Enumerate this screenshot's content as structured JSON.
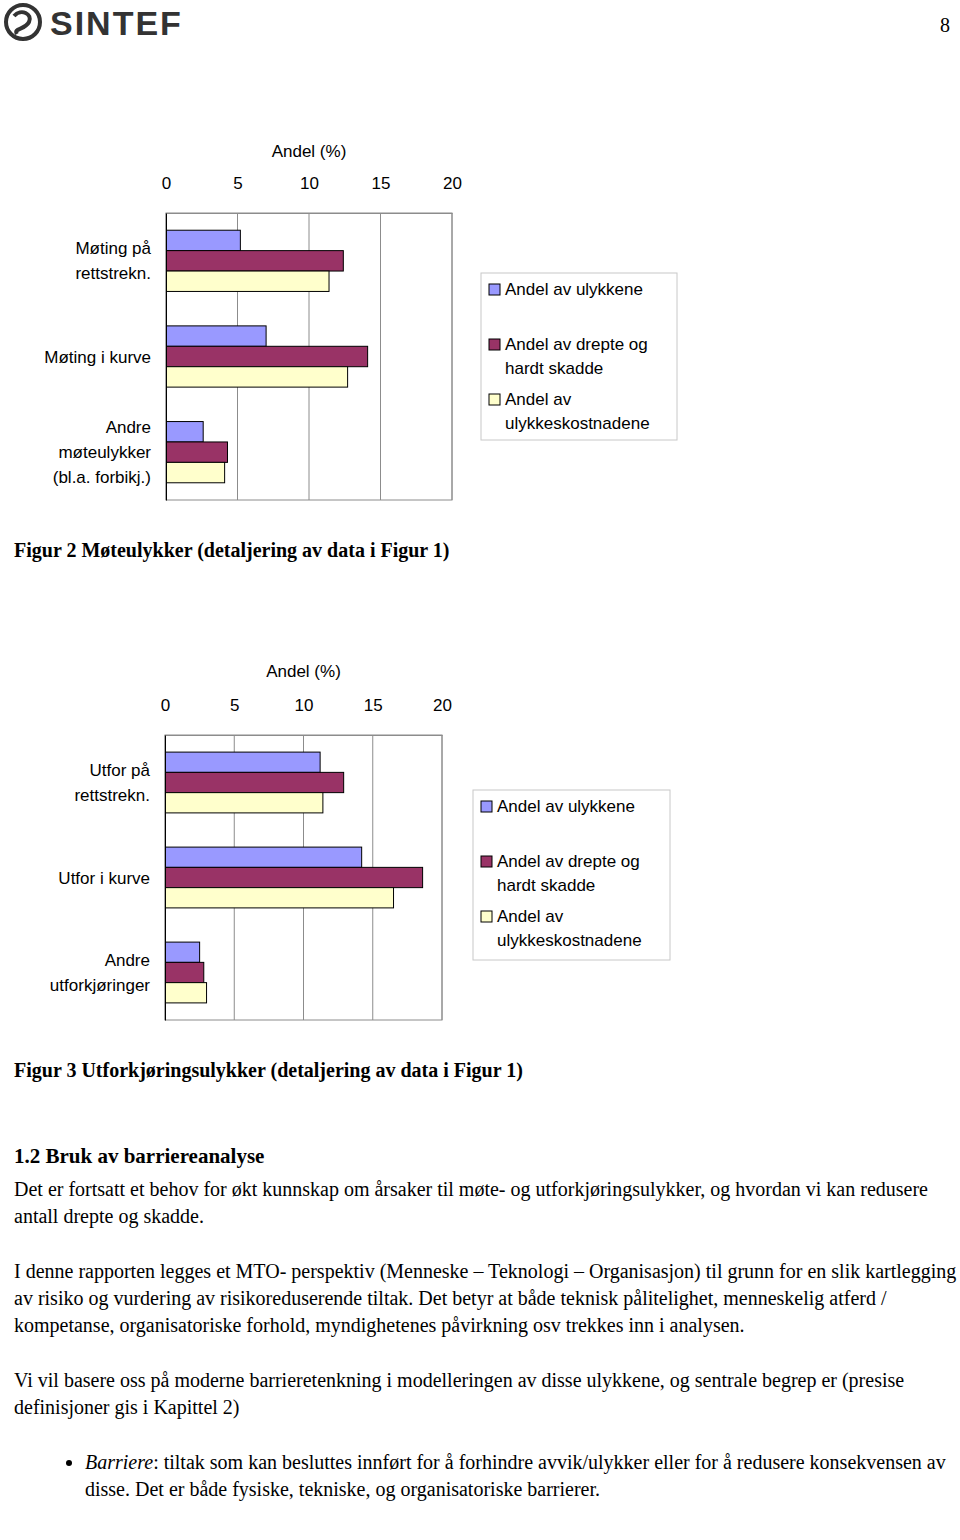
{
  "header": {
    "logo": "SINTEF",
    "page_number": 8
  },
  "chart_data": [
    {
      "type": "bar",
      "orientation": "horizontal",
      "title": "Figur 2 Møteulykker (detaljering av data i Figur 1)",
      "x_label": "Andel (%)",
      "categories": [
        "Møting på rettstrekn.",
        "Møting i kurve",
        "Andre møteulykker (bl.a. forbikj.)"
      ],
      "series": [
        {
          "name": "Andel av ulykkene",
          "color": "#9999ff",
          "values": [
            5.2,
            7.0,
            2.6
          ]
        },
        {
          "name": "Andel av drepte og hardt skadde",
          "color": "#993366",
          "values": [
            12.4,
            14.1,
            4.3
          ]
        },
        {
          "name": "Andel av ulykkeskostnadene",
          "color": "#ffffcc",
          "values": [
            11.4,
            12.7,
            4.1
          ]
        }
      ],
      "xlim": [
        0,
        20
      ],
      "xticks": [
        0,
        5,
        10,
        15,
        20
      ],
      "grid": true,
      "legend": "right"
    },
    {
      "type": "bar",
      "orientation": "horizontal",
      "title": "Figur 3 Utforkjøringsulykker (detaljering av data i Figur 1)",
      "x_label": "Andel (%)",
      "categories": [
        "Utfor på rettstrekn.",
        "Utfor i kurve",
        "Andre utforkjøringer"
      ],
      "series": [
        {
          "name": "Andel av ulykkene",
          "color": "#9999ff",
          "values": [
            11.2,
            14.2,
            2.5
          ]
        },
        {
          "name": "Andel av drepte og hardt skadde",
          "color": "#993366",
          "values": [
            12.9,
            18.6,
            2.8
          ]
        },
        {
          "name": "Andel av ulykkeskostnadene",
          "color": "#ffffcc",
          "values": [
            11.4,
            16.5,
            3.0
          ]
        }
      ],
      "xlim": [
        0,
        20
      ],
      "xticks": [
        0,
        5,
        10,
        15,
        20
      ],
      "grid": true,
      "legend": "right"
    }
  ],
  "section": {
    "heading": "1.2 Bruk av barriereanalyse",
    "paragraphs": [
      "Det er fortsatt et behov for økt kunnskap om årsaker til møte- og utforkjøringsulykker, og hvordan vi kan redusere antall drepte og skadde.",
      "I denne rapporten legges et MTO- perspektiv (Menneske – Teknologi – Organisasjon) til grunn for en slik kartlegging av risiko og vurdering av risikoreduserende tiltak. Det betyr at både teknisk pålitelighet, menneskelig atferd / kompetanse, organisatoriske forhold, myndighetenes påvirkning osv trekkes inn i analysen.",
      "Vi vil basere oss på moderne barrieretenkning i modelleringen av disse ulykkene, og sentrale begrep er (presise definisjoner gis i Kapittel 2)"
    ],
    "bullets": [
      {
        "term": "Barriere",
        "text": ": tiltak som kan besluttes innført for å forhindre avvik/ulykker eller for å redusere konsekvensen av disse. Det er både fysiske, tekniske, og organisatoriske barrierer."
      }
    ]
  }
}
